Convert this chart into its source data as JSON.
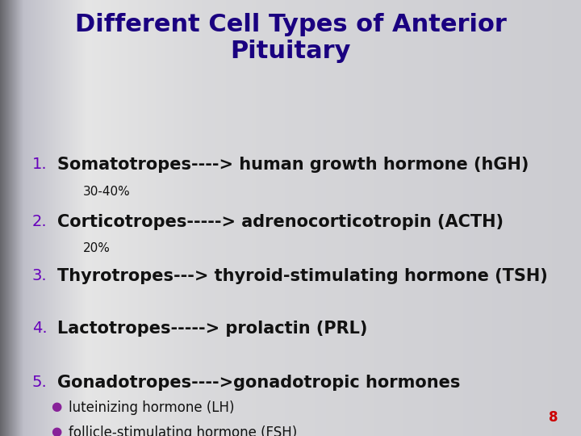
{
  "title_line1": "Different Cell Types of Anterior",
  "title_line2": "Pituitary",
  "title_color": "#1a0080",
  "title_fontsize": 22,
  "number_color": "#6600bb",
  "number_fontsize": 14,
  "item_fontsize": 15,
  "item_color": "#111111",
  "sub_fontsize": 11,
  "sub_color": "#111111",
  "items": [
    {
      "num": "1.",
      "text": "Somatotropes----> human growth hormone (hGH)",
      "sub": "30-40%"
    },
    {
      "num": "2.",
      "text": "Corticotropes-----> adrenocorticotropin (ACTH)",
      "sub": "20%"
    },
    {
      "num": "3.",
      "text": "Thyrotropes---> thyroid-stimulating hormone (TSH)",
      "sub": ""
    },
    {
      "num": "4.",
      "text": "Lactotropes-----> prolactin (PRL)",
      "sub": ""
    },
    {
      "num": "5.",
      "text": "Gonadotropes---->gonadotropic hormones",
      "sub": ""
    }
  ],
  "bullets": [
    "luteinizing hormone (LH)",
    "follicle-stimulating hormone (FSH)"
  ],
  "bullet_color": "#882299",
  "page_number": "8",
  "page_number_color": "#cc0000",
  "page_number_fontsize": 12,
  "bg_left": "#8a8a96",
  "bg_mid": "#d8d8e0",
  "bg_right": "#c0c0cc"
}
